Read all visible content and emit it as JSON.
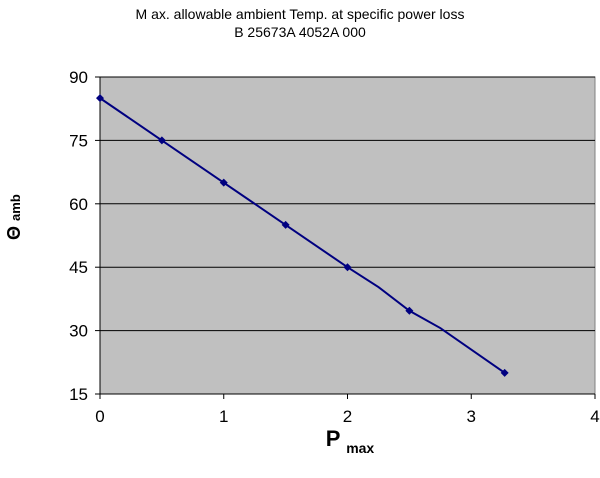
{
  "chart_data": {
    "type": "line",
    "title": "M ax. allowable ambient Temp. at specific power loss",
    "subtitle": "B 25673A 4052A 000",
    "xlabel_main": "P",
    "xlabel_sub": "max",
    "ylabel_main": "Θ",
    "ylabel_sub": "amb",
    "xlim": [
      0,
      4
    ],
    "ylim": [
      15,
      90
    ],
    "xticks": [
      0,
      1,
      2,
      3,
      4
    ],
    "yticks": [
      15,
      30,
      45,
      60,
      75,
      90
    ],
    "grid": true,
    "plot_background": "#c0c0c0",
    "line_color": "#000080",
    "series": [
      {
        "x": [
          0,
          0.5,
          1.0,
          1.5,
          2.0,
          2.25,
          2.5,
          2.75,
          3.27
        ],
        "y": [
          85,
          75,
          65,
          55,
          45,
          40.3,
          34.7,
          30.6,
          20
        ],
        "markers": [
          true,
          true,
          true,
          true,
          true,
          false,
          true,
          false,
          true
        ]
      }
    ]
  }
}
